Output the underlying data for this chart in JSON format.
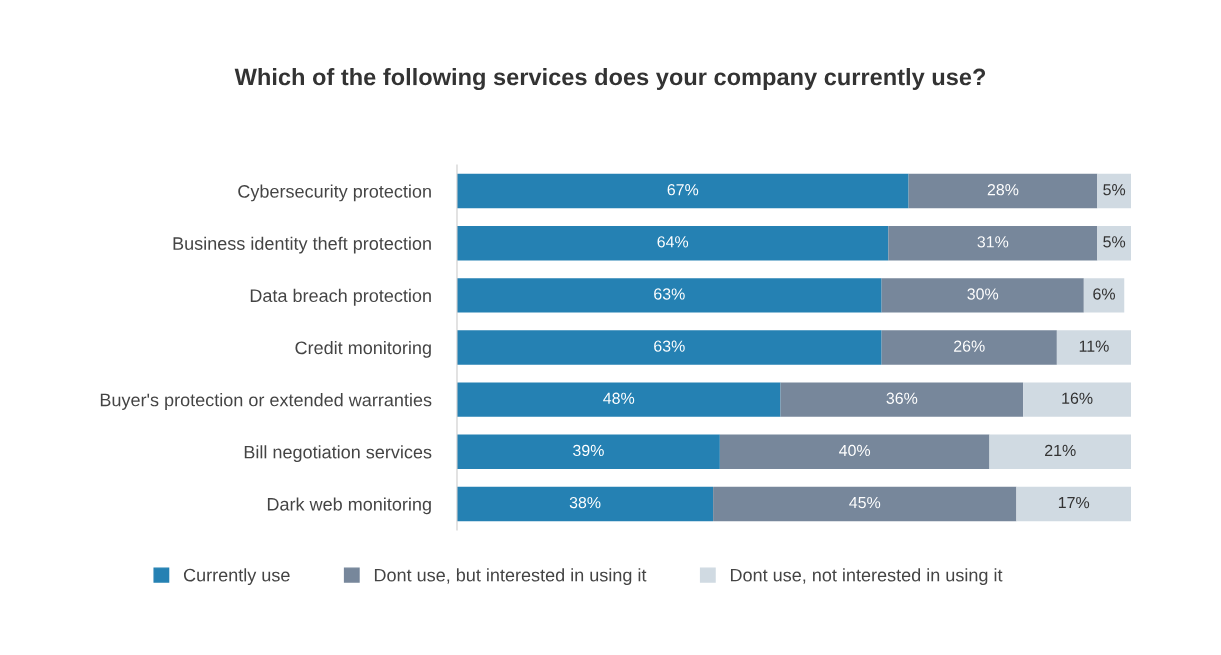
{
  "chart_data": {
    "type": "bar",
    "orientation": "horizontal",
    "stacked": true,
    "title": "Which of the following services does your company currently use?",
    "categories": [
      "Cybersecurity protection",
      "Business identity theft protection",
      "Data breach protection",
      "Credit monitoring",
      "Buyer's protection or extended warranties",
      "Bill negotiation services",
      "Dark web monitoring"
    ],
    "series": [
      {
        "name": "Currently use",
        "color": "#2581b3",
        "values": [
          67,
          64,
          63,
          63,
          48,
          39,
          38
        ],
        "value_labels": [
          "67%",
          "64%",
          "63%",
          "63%",
          "48%",
          "39%",
          "38%"
        ]
      },
      {
        "name": "Dont use, but interested in using it",
        "color": "#77879b",
        "values": [
          28,
          31,
          30,
          26,
          36,
          40,
          45
        ],
        "value_labels": [
          "28%",
          "31%",
          "30%",
          "26%",
          "36%",
          "40%",
          "45%"
        ]
      },
      {
        "name": "Dont use, not interested in using it",
        "color": "#d0dae2",
        "values": [
          5,
          5,
          6,
          11,
          16,
          21,
          17
        ],
        "value_labels": [
          "5%",
          "5%",
          "6%",
          "11%",
          "16%",
          "21%",
          "17%"
        ]
      }
    ],
    "legend": "bottom",
    "grid": false
  }
}
